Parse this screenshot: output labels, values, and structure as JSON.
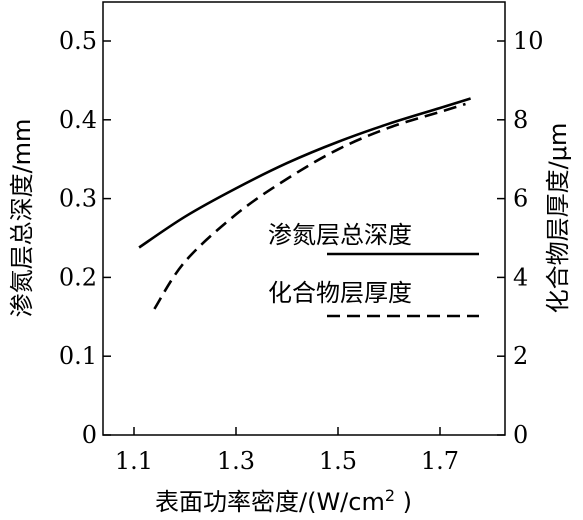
{
  "chart_data": {
    "type": "line",
    "xlabel": "表面功率密度/(W/cm",
    "xlabel_sup": "2",
    "xlabel_tail": " )",
    "ylabel_left": "渗氮层总深度/mm",
    "ylabel_right": "化合物层厚度/μm",
    "xlim": [
      1.03,
      1.8
    ],
    "ylim_left": [
      0,
      0.55
    ],
    "ylim_right": [
      0,
      11
    ],
    "x_ticks": [
      1.1,
      1.3,
      1.5,
      1.7
    ],
    "x_tick_labels": [
      "1.1",
      "1.3",
      "1.5",
      "1.7"
    ],
    "y_left_ticks": [
      0,
      0.1,
      0.2,
      0.3,
      0.4,
      0.5
    ],
    "y_left_tick_labels": [
      "0",
      "0.1",
      "0.2",
      "0.3",
      "0.4",
      "0.5"
    ],
    "y_right_ticks": [
      0,
      2,
      4,
      6,
      8,
      10
    ],
    "y_right_tick_labels": [
      "0",
      "2",
      "4",
      "6",
      "8",
      "10"
    ],
    "grid": false,
    "legend_placement": "right",
    "series": [
      {
        "name": "渗氮层总深度",
        "style": "solid",
        "axis": "left",
        "color": "#000000",
        "x": [
          1.11,
          1.2,
          1.3,
          1.4,
          1.5,
          1.6,
          1.7,
          1.76
        ],
        "y": [
          0.238,
          0.277,
          0.313,
          0.345,
          0.372,
          0.395,
          0.415,
          0.427
        ]
      },
      {
        "name": "化合物层厚度",
        "style": "dashed",
        "axis": "right",
        "color": "#000000",
        "x": [
          1.14,
          1.2,
          1.3,
          1.4,
          1.5,
          1.6,
          1.7,
          1.75
        ],
        "y": [
          3.2,
          4.4,
          5.6,
          6.5,
          7.25,
          7.8,
          8.2,
          8.4
        ]
      }
    ]
  }
}
